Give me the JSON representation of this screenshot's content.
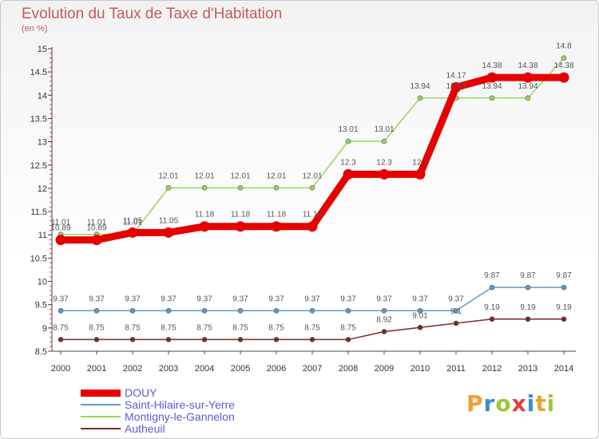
{
  "header": {
    "title": "Evolution du Taux de Taxe d'Habitation",
    "subtitle": "(en %)"
  },
  "logo": {
    "text": "Proxiti",
    "colors": [
      "#f0a030",
      "#3a8ad8",
      "#9ac838",
      "#e04040",
      "#3a8ad8",
      "#f0a030",
      "#9ac838"
    ]
  },
  "chart_data": {
    "type": "line",
    "x": [
      2000,
      2001,
      2002,
      2003,
      2004,
      2005,
      2006,
      2007,
      2008,
      2009,
      2010,
      2011,
      2012,
      2013,
      2014
    ],
    "ylim": [
      8.5,
      15
    ],
    "yticks": [
      8.5,
      9,
      9.5,
      10,
      10.5,
      11,
      11.5,
      12,
      12.5,
      13,
      13.5,
      14,
      14.5,
      15
    ],
    "grid": false,
    "legend": "bottom-left",
    "series": [
      {
        "name": "DOUY",
        "color": "#e60000",
        "values": [
          10.89,
          10.89,
          11.05,
          11.05,
          11.18,
          11.18,
          11.18,
          11.18,
          12.3,
          12.3,
          12.3,
          14.17,
          14.38,
          14.38,
          14.38
        ],
        "labels": [
          "10.89",
          "10.89",
          "11.05",
          "11.05",
          "11.18",
          "11.18",
          "11.18",
          "11.18",
          "12.3",
          "12.3",
          "12.3",
          "14.17",
          "14.38",
          "14.38",
          "14.38"
        ]
      },
      {
        "name": "Saint-Hilaire-sur-Yerre",
        "color": "#5c9bd1",
        "values": [
          9.37,
          9.37,
          9.37,
          9.37,
          9.37,
          9.37,
          9.37,
          9.37,
          9.37,
          9.37,
          9.37,
          9.37,
          9.87,
          9.87,
          9.87
        ],
        "labels": [
          "9.37",
          "9.37",
          "9.37",
          "9.37",
          "9.37",
          "9.37",
          "9.37",
          "9.37",
          "9.37",
          "9.37",
          "9.37",
          "9.37",
          "9.87",
          "9.87",
          "9.87"
        ]
      },
      {
        "name": "Montigny-le-Gannelon",
        "color": "#99d45c",
        "values": [
          11.01,
          11.01,
          11.01,
          12.01,
          12.01,
          12.01,
          12.01,
          12.01,
          13.01,
          13.01,
          13.94,
          13.94,
          13.94,
          13.94,
          14.8
        ],
        "labels": [
          "11.01",
          "11.01",
          "11.01",
          "12.01",
          "12.01",
          "12.01",
          "12.01",
          "12.01",
          "13.01",
          "13.01",
          "13.94",
          "13.94",
          "13.94",
          "13.94",
          "14.8"
        ]
      },
      {
        "name": "Autheuil",
        "color": "#7a2a2a",
        "values": [
          8.75,
          8.75,
          8.75,
          8.75,
          8.75,
          8.75,
          8.75,
          8.75,
          8.75,
          8.92,
          9.01,
          9.1,
          9.19,
          9.19,
          9.19
        ],
        "labels": [
          "8.75",
          "8.75",
          "8.75",
          "8.75",
          "8.75",
          "8.75",
          "8.75",
          "8.75",
          "8.75",
          "8.92",
          "9.01",
          "9.1",
          "9.19",
          "9.19",
          "9.19"
        ]
      }
    ]
  }
}
